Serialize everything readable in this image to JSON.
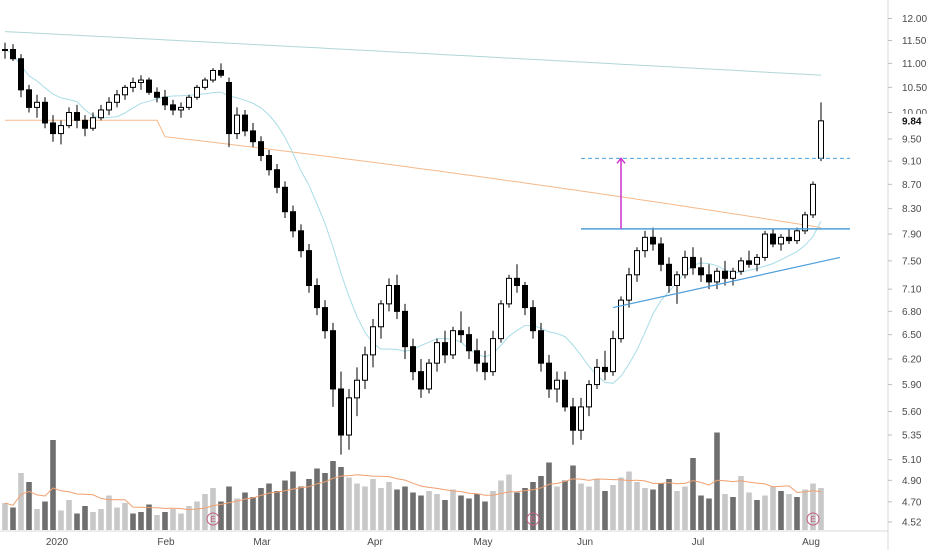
{
  "chart_data": {
    "type": "candlestick",
    "title": "",
    "y_axis": {
      "ticks": [
        4.52,
        4.7,
        4.9,
        5.1,
        5.35,
        5.6,
        5.9,
        6.2,
        6.5,
        6.8,
        7.1,
        7.5,
        7.9,
        8.3,
        8.7,
        9.1,
        9.5,
        10.0,
        10.5,
        11.0,
        11.5,
        12.0
      ],
      "tick_labels": [
        "4.52",
        "4.70",
        "4.90",
        "5.10",
        "5.35",
        "5.60",
        "5.90",
        "6.20",
        "6.50",
        "6.80",
        "7.10",
        "7.50",
        "7.90",
        "8.30",
        "8.70",
        "9.10",
        "9.50",
        "10.00",
        "10.50",
        "11.00",
        "11.50",
        "12.00"
      ],
      "scale": "log",
      "range": [
        4.45,
        12.2
      ],
      "position": "right"
    },
    "x_axis": {
      "months": [
        "2020",
        "Feb",
        "Mar",
        "Apr",
        "May",
        "Jun",
        "Jul",
        "Aug"
      ]
    },
    "last_price": 9.84,
    "last_price_label": "9.84",
    "grid": false,
    "colors": {
      "up": "#ffffff",
      "up_border": "#000000",
      "down": "#000000",
      "ma_long": "#b0d6d6",
      "ma_200": "#f5b98a",
      "ma_short": "#a9dde6",
      "trendline": "#4d9fdb",
      "target_line": "#4d9fdb",
      "measured_move": "#cc33cc",
      "volume_up": "#c8c8c8",
      "volume_down": "#6f6f6f",
      "volume_ma": "#f0a070",
      "earnings": "#c06080"
    },
    "earnings_marker": "E",
    "annotations": {
      "resistance_level": 7.98,
      "target_level": 9.15,
      "support_trendline_start": 6.85,
      "support_trendline_end": 7.55
    },
    "candles": [
      [
        11.28,
        11.45,
        11.1,
        11.3
      ],
      [
        11.3,
        11.42,
        11.05,
        11.1
      ],
      [
        11.1,
        11.2,
        10.3,
        10.45
      ],
      [
        10.45,
        10.55,
        10.0,
        10.1
      ],
      [
        10.1,
        10.35,
        9.9,
        10.2
      ],
      [
        10.2,
        10.3,
        9.7,
        9.8
      ],
      [
        9.8,
        9.95,
        9.45,
        9.6
      ],
      [
        9.6,
        9.85,
        9.4,
        9.75
      ],
      [
        9.75,
        10.1,
        9.7,
        10.0
      ],
      [
        10.0,
        10.15,
        9.7,
        9.85
      ],
      [
        9.85,
        9.95,
        9.55,
        9.7
      ],
      [
        9.7,
        10.0,
        9.65,
        9.9
      ],
      [
        9.9,
        10.15,
        9.85,
        10.05
      ],
      [
        10.05,
        10.3,
        9.95,
        10.2
      ],
      [
        10.2,
        10.45,
        10.1,
        10.35
      ],
      [
        10.35,
        10.55,
        10.25,
        10.5
      ],
      [
        10.5,
        10.7,
        10.4,
        10.6
      ],
      [
        10.6,
        10.75,
        10.45,
        10.65
      ],
      [
        10.65,
        10.7,
        10.35,
        10.4
      ],
      [
        10.4,
        10.5,
        10.2,
        10.3
      ],
      [
        10.3,
        10.45,
        10.05,
        10.15
      ],
      [
        10.15,
        10.25,
        9.95,
        10.05
      ],
      [
        10.05,
        10.2,
        9.9,
        10.1
      ],
      [
        10.1,
        10.35,
        10.05,
        10.3
      ],
      [
        10.3,
        10.55,
        10.25,
        10.5
      ],
      [
        10.5,
        10.7,
        10.45,
        10.65
      ],
      [
        10.65,
        10.9,
        10.6,
        10.85
      ],
      [
        10.85,
        11.0,
        10.7,
        10.75
      ],
      [
        10.6,
        10.7,
        9.35,
        9.6
      ],
      [
        9.6,
        10.1,
        9.5,
        9.95
      ],
      [
        9.95,
        10.05,
        9.55,
        9.65
      ],
      [
        9.65,
        9.8,
        9.35,
        9.45
      ],
      [
        9.45,
        9.55,
        9.1,
        9.2
      ],
      [
        9.2,
        9.3,
        8.85,
        8.95
      ],
      [
        8.95,
        9.05,
        8.55,
        8.65
      ],
      [
        8.65,
        8.75,
        8.15,
        8.25
      ],
      [
        8.25,
        8.35,
        7.85,
        7.95
      ],
      [
        7.95,
        8.05,
        7.55,
        7.65
      ],
      [
        7.65,
        7.75,
        7.05,
        7.15
      ],
      [
        7.15,
        7.25,
        6.75,
        6.85
      ],
      [
        6.85,
        6.95,
        6.45,
        6.55
      ],
      [
        6.55,
        6.65,
        5.65,
        5.85
      ],
      [
        5.85,
        6.05,
        5.15,
        5.35
      ],
      [
        5.35,
        5.85,
        5.2,
        5.75
      ],
      [
        5.75,
        6.1,
        5.55,
        5.95
      ],
      [
        5.95,
        6.35,
        5.85,
        6.25
      ],
      [
        6.25,
        6.7,
        6.1,
        6.6
      ],
      [
        6.6,
        6.95,
        6.45,
        6.9
      ],
      [
        6.9,
        7.25,
        6.8,
        7.15
      ],
      [
        7.15,
        7.3,
        6.7,
        6.8
      ],
      [
        6.8,
        6.9,
        6.2,
        6.35
      ],
      [
        6.35,
        6.45,
        5.95,
        6.05
      ],
      [
        6.05,
        6.2,
        5.75,
        5.85
      ],
      [
        5.85,
        6.2,
        5.8,
        6.15
      ],
      [
        6.15,
        6.45,
        6.05,
        6.4
      ],
      [
        6.4,
        6.55,
        6.15,
        6.25
      ],
      [
        6.25,
        6.6,
        6.2,
        6.55
      ],
      [
        6.55,
        6.8,
        6.4,
        6.5
      ],
      [
        6.5,
        6.6,
        6.2,
        6.3
      ],
      [
        6.3,
        6.45,
        6.05,
        6.15
      ],
      [
        6.15,
        6.3,
        5.95,
        6.05
      ],
      [
        6.05,
        6.55,
        6.0,
        6.45
      ],
      [
        6.45,
        6.95,
        6.4,
        6.9
      ],
      [
        6.9,
        7.3,
        6.85,
        7.25
      ],
      [
        7.25,
        7.45,
        7.05,
        7.15
      ],
      [
        7.15,
        7.2,
        6.75,
        6.85
      ],
      [
        6.85,
        6.95,
        6.45,
        6.55
      ],
      [
        6.55,
        6.65,
        6.05,
        6.15
      ],
      [
        6.15,
        6.25,
        5.75,
        5.85
      ],
      [
        5.85,
        6.05,
        5.7,
        5.95
      ],
      [
        5.95,
        6.05,
        5.6,
        5.65
      ],
      [
        5.65,
        5.75,
        5.25,
        5.4
      ],
      [
        5.4,
        5.75,
        5.3,
        5.65
      ],
      [
        5.65,
        5.95,
        5.55,
        5.9
      ],
      [
        5.9,
        6.2,
        5.85,
        6.1
      ],
      [
        6.1,
        6.3,
        5.95,
        6.05
      ],
      [
        6.05,
        6.55,
        6.0,
        6.45
      ],
      [
        6.45,
        7.0,
        6.4,
        6.95
      ],
      [
        6.95,
        7.4,
        6.85,
        7.3
      ],
      [
        7.3,
        7.7,
        7.2,
        7.65
      ],
      [
        7.65,
        7.95,
        7.55,
        7.85
      ],
      [
        7.85,
        8.0,
        7.65,
        7.75
      ],
      [
        7.75,
        7.85,
        7.35,
        7.45
      ],
      [
        7.45,
        7.55,
        7.05,
        7.15
      ],
      [
        7.15,
        7.35,
        6.9,
        7.3
      ],
      [
        7.3,
        7.65,
        7.25,
        7.55
      ],
      [
        7.55,
        7.7,
        7.3,
        7.4
      ],
      [
        7.4,
        7.55,
        7.2,
        7.3
      ],
      [
        7.3,
        7.45,
        7.1,
        7.2
      ],
      [
        7.2,
        7.4,
        7.1,
        7.35
      ],
      [
        7.35,
        7.5,
        7.15,
        7.25
      ],
      [
        7.25,
        7.4,
        7.15,
        7.35
      ],
      [
        7.35,
        7.55,
        7.3,
        7.5
      ],
      [
        7.5,
        7.65,
        7.4,
        7.45
      ],
      [
        7.45,
        7.6,
        7.35,
        7.55
      ],
      [
        7.55,
        7.95,
        7.5,
        7.9
      ],
      [
        7.9,
        7.98,
        7.7,
        7.75
      ],
      [
        7.75,
        7.9,
        7.65,
        7.85
      ],
      [
        7.85,
        7.98,
        7.75,
        7.8
      ],
      [
        7.8,
        8.0,
        7.75,
        7.95
      ],
      [
        7.95,
        8.25,
        7.9,
        8.2
      ],
      [
        8.2,
        8.75,
        8.15,
        8.7
      ],
      [
        9.15,
        10.2,
        9.1,
        9.84
      ]
    ],
    "volumes": [
      [
        1.8,
        1
      ],
      [
        1.5,
        0
      ],
      [
        3.8,
        1
      ],
      [
        3.2,
        0
      ],
      [
        1.4,
        1
      ],
      [
        1.9,
        0
      ],
      [
        6.0,
        0
      ],
      [
        1.3,
        1
      ],
      [
        2.0,
        1
      ],
      [
        1.1,
        0
      ],
      [
        1.6,
        0
      ],
      [
        1.2,
        1
      ],
      [
        1.4,
        1
      ],
      [
        2.3,
        1
      ],
      [
        1.5,
        1
      ],
      [
        1.8,
        1
      ],
      [
        1.1,
        0
      ],
      [
        1.2,
        0
      ],
      [
        1.7,
        0
      ],
      [
        1.0,
        1
      ],
      [
        1.2,
        0
      ],
      [
        1.4,
        1
      ],
      [
        1.1,
        1
      ],
      [
        1.6,
        1
      ],
      [
        1.9,
        1
      ],
      [
        2.4,
        1
      ],
      [
        2.8,
        1
      ],
      [
        1.9,
        0
      ],
      [
        2.9,
        0
      ],
      [
        2.1,
        1
      ],
      [
        2.5,
        0
      ],
      [
        2.2,
        0
      ],
      [
        2.8,
        0
      ],
      [
        3.1,
        0
      ],
      [
        2.6,
        0
      ],
      [
        3.3,
        0
      ],
      [
        3.9,
        0
      ],
      [
        2.9,
        0
      ],
      [
        3.4,
        0
      ],
      [
        4.1,
        0
      ],
      [
        3.8,
        0
      ],
      [
        4.6,
        0
      ],
      [
        4.2,
        0
      ],
      [
        3.5,
        1
      ],
      [
        3.1,
        1
      ],
      [
        2.9,
        1
      ],
      [
        3.4,
        1
      ],
      [
        2.8,
        1
      ],
      [
        3.2,
        1
      ],
      [
        2.7,
        0
      ],
      [
        2.9,
        0
      ],
      [
        2.5,
        0
      ],
      [
        2.3,
        0
      ],
      [
        2.6,
        1
      ],
      [
        2.4,
        1
      ],
      [
        2.0,
        0
      ],
      [
        2.7,
        1
      ],
      [
        2.3,
        0
      ],
      [
        2.1,
        0
      ],
      [
        2.4,
        0
      ],
      [
        1.9,
        0
      ],
      [
        2.6,
        1
      ],
      [
        3.3,
        1
      ],
      [
        3.7,
        1
      ],
      [
        2.5,
        0
      ],
      [
        2.8,
        0
      ],
      [
        3.2,
        0
      ],
      [
        3.6,
        0
      ],
      [
        4.5,
        0
      ],
      [
        2.9,
        1
      ],
      [
        3.3,
        0
      ],
      [
        4.3,
        0
      ],
      [
        3.1,
        1
      ],
      [
        2.9,
        1
      ],
      [
        3.4,
        1
      ],
      [
        2.6,
        0
      ],
      [
        3.0,
        1
      ],
      [
        3.5,
        1
      ],
      [
        3.9,
        1
      ],
      [
        3.2,
        1
      ],
      [
        2.8,
        1
      ],
      [
        2.7,
        0
      ],
      [
        3.1,
        0
      ],
      [
        3.4,
        0
      ],
      [
        2.6,
        1
      ],
      [
        2.9,
        1
      ],
      [
        4.8,
        0
      ],
      [
        2.3,
        0
      ],
      [
        2.1,
        0
      ],
      [
        6.5,
        0
      ],
      [
        2.4,
        1
      ],
      [
        2.2,
        0
      ],
      [
        3.6,
        1
      ],
      [
        2.5,
        1
      ],
      [
        2.0,
        0
      ],
      [
        2.3,
        1
      ],
      [
        2.9,
        1
      ],
      [
        2.6,
        0
      ],
      [
        2.4,
        1
      ],
      [
        2.2,
        0
      ],
      [
        2.7,
        1
      ],
      [
        3.1,
        1
      ],
      [
        2.8,
        1
      ]
    ],
    "earnings_dates": [
      26,
      66,
      101
    ],
    "month_positions": [
      8,
      28,
      50,
      72,
      92,
      110,
      130,
      150
    ]
  }
}
